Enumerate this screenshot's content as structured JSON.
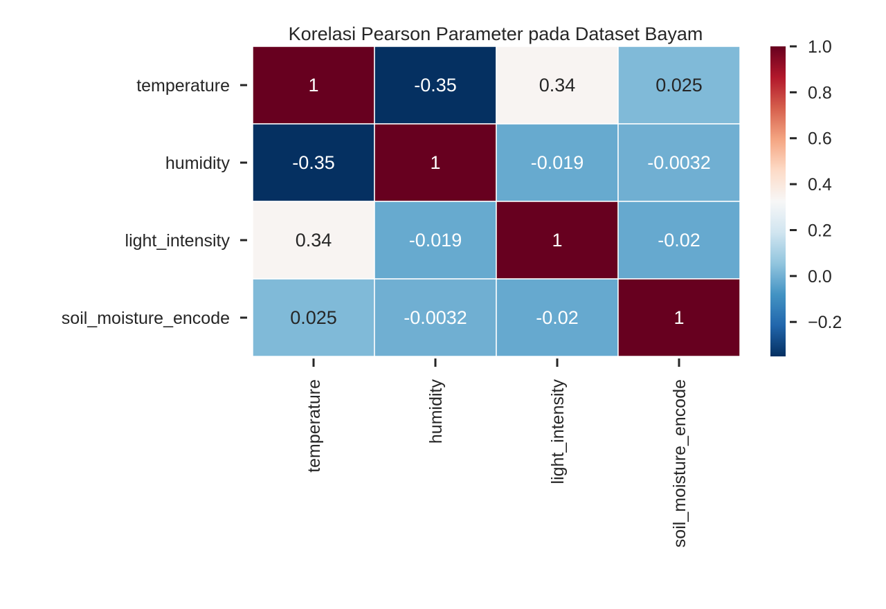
{
  "chart_data": {
    "type": "heatmap",
    "title": "Korelasi Pearson Parameter pada Dataset Bayam",
    "rows": [
      "temperature",
      "humidity",
      "light_intensity",
      "soil_moisture_encode"
    ],
    "columns": [
      "temperature",
      "humidity",
      "light_intensity",
      "soil_moisture_encode"
    ],
    "values": [
      [
        1,
        -0.35,
        0.34,
        0.025
      ],
      [
        -0.35,
        1,
        -0.019,
        -0.0032
      ],
      [
        0.34,
        -0.019,
        1,
        -0.02
      ],
      [
        0.025,
        -0.0032,
        -0.02,
        1
      ]
    ],
    "annotations": [
      [
        "1",
        "-0.35",
        "0.34",
        "0.025"
      ],
      [
        "-0.35",
        "1",
        "-0.019",
        "-0.0032"
      ],
      [
        "0.34",
        "-0.019",
        "1",
        "-0.02"
      ],
      [
        "0.025",
        "-0.0032",
        "-0.02",
        "1"
      ]
    ],
    "colormap": "RdBu_r",
    "vmin": -0.35,
    "vmax": 1.0,
    "colorbar": {
      "ticks": [
        1.0,
        0.8,
        0.6,
        0.4,
        0.2,
        0.0,
        -0.2
      ],
      "tick_labels": [
        "1.0",
        "0.8",
        "0.6",
        "0.4",
        "0.2",
        "0.0",
        "−0.2"
      ]
    },
    "grid": false,
    "legend": "colorbar-right"
  }
}
